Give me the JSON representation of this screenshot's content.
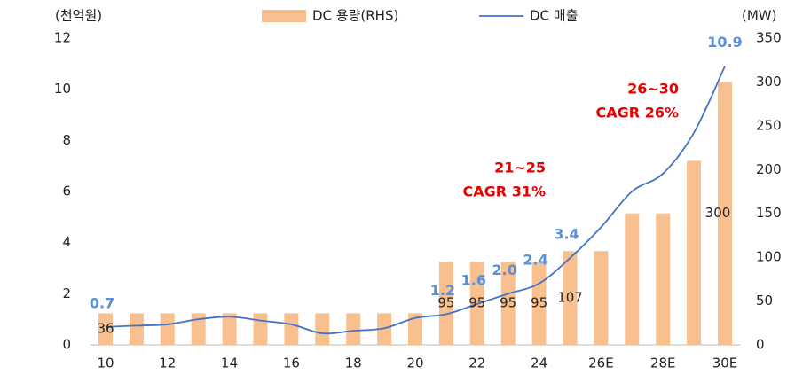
{
  "chart_data": {
    "type": "bar_line",
    "y_label": "(천억원)",
    "y2_label": "(MW)",
    "categories": [
      "10",
      null,
      "12",
      null,
      "14",
      null,
      "16",
      null,
      "18",
      null,
      "20",
      null,
      "22",
      null,
      "24",
      null,
      "26E",
      null,
      "28E",
      null,
      "30E"
    ],
    "series": [
      {
        "name": "DC 용량(RHS)",
        "type": "bar",
        "axis": "y2",
        "color": "#f9c08f",
        "values": [
          36,
          36,
          36,
          36,
          36,
          36,
          36,
          36,
          36,
          36,
          36,
          95,
          95,
          95,
          95,
          107,
          107,
          150,
          150,
          210,
          300
        ],
        "value_labels": [
          "36",
          null,
          null,
          null,
          null,
          null,
          null,
          null,
          null,
          null,
          null,
          "95",
          "95",
          "95",
          "95",
          "107",
          null,
          null,
          null,
          null,
          "300"
        ]
      },
      {
        "name": "DC 매출",
        "type": "line",
        "color": "#4472c4",
        "values": [
          0.7,
          0.75,
          0.8,
          1.0,
          1.1,
          0.95,
          0.8,
          0.45,
          0.55,
          0.65,
          1.05,
          1.2,
          1.6,
          2.0,
          2.4,
          3.4,
          4.6,
          6.0,
          6.7,
          8.3,
          10.9
        ],
        "value_labels": [
          "0.7",
          null,
          null,
          null,
          null,
          null,
          null,
          null,
          null,
          null,
          null,
          "1.2",
          "1.6",
          "2.0",
          "2.4",
          "3.4",
          null,
          null,
          null,
          null,
          "10.9"
        ]
      }
    ],
    "ylim": [
      0,
      12
    ],
    "yticks": [
      0,
      2,
      4,
      6,
      8,
      10,
      12
    ],
    "y2lim": [
      0,
      350
    ],
    "y2ticks": [
      0,
      50,
      100,
      150,
      200,
      250,
      300,
      350
    ],
    "annotations": [
      {
        "lines": [
          "21~25",
          "CAGR 31%"
        ],
        "color": "#e60000"
      },
      {
        "lines": [
          "26~30",
          "CAGR 26%"
        ],
        "color": "#e60000"
      }
    ]
  }
}
